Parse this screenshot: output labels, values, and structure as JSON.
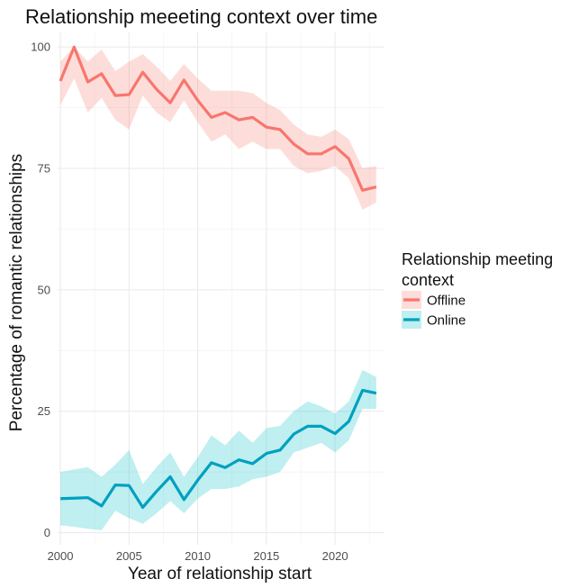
{
  "chart_data": {
    "type": "line",
    "title": "Relationship meeeting context over time",
    "xlabel": "Year of relationship start",
    "ylabel": "Percentage of romantic relationships",
    "x": [
      2000,
      2001,
      2002,
      2003,
      2004,
      2005,
      2006,
      2007,
      2008,
      2009,
      2010,
      2011,
      2012,
      2013,
      2014,
      2015,
      2016,
      2017,
      2018,
      2019,
      2020,
      2021,
      2022,
      2023
    ],
    "xlim": [
      1999.8,
      2023.6
    ],
    "ylim": [
      -2.5,
      103
    ],
    "x_ticks": [
      2000,
      2005,
      2010,
      2015,
      2020
    ],
    "y_ticks": [
      0,
      25,
      50,
      75,
      100
    ],
    "grid": true,
    "legend_position": "right",
    "legend_title": "Relationship meeting context",
    "series": [
      {
        "name": "Offline",
        "color": "#f8766d",
        "band_color": "#f8766d",
        "values": [
          93.0,
          100.0,
          92.8,
          94.5,
          90.0,
          90.2,
          94.8,
          91.3,
          88.5,
          93.2,
          89.0,
          85.5,
          86.5,
          85.0,
          85.5,
          83.5,
          83.0,
          80.0,
          78.0,
          78.0,
          79.5,
          77.0,
          70.5,
          71.2
        ],
        "lower": [
          88.0,
          93.5,
          86.5,
          89.5,
          85.0,
          83.0,
          90.0,
          86.5,
          84.5,
          89.0,
          84.5,
          80.5,
          82.0,
          79.0,
          80.5,
          79.0,
          79.0,
          75.5,
          74.0,
          74.5,
          75.5,
          73.0,
          66.5,
          68.0
        ],
        "upper": [
          97.0,
          100.0,
          97.0,
          99.5,
          95.0,
          97.0,
          98.5,
          96.0,
          93.0,
          96.5,
          93.5,
          91.0,
          91.0,
          91.0,
          90.5,
          88.5,
          87.0,
          84.0,
          82.0,
          81.5,
          83.0,
          81.0,
          75.0,
          75.5
        ]
      },
      {
        "name": "Online",
        "color": "#00a0c0",
        "band_color": "#00bfc4",
        "values": [
          7.0,
          7.1,
          7.2,
          5.5,
          9.8,
          9.7,
          5.2,
          8.5,
          11.5,
          6.8,
          10.8,
          14.4,
          13.4,
          15.0,
          14.2,
          16.3,
          17.0,
          20.3,
          21.9,
          21.9,
          20.4,
          22.9,
          29.3,
          28.7
        ],
        "lower": [
          1.5,
          1.2,
          0.8,
          0.5,
          4.5,
          3.0,
          1.8,
          4.0,
          6.5,
          4.0,
          7.0,
          9.0,
          9.0,
          9.5,
          11.0,
          11.5,
          12.5,
          16.5,
          17.5,
          18.5,
          16.5,
          19.0,
          25.5,
          25.5
        ],
        "upper": [
          12.5,
          13.0,
          13.5,
          11.5,
          14.0,
          17.0,
          10.0,
          13.5,
          16.5,
          11.5,
          15.5,
          20.0,
          18.0,
          21.0,
          18.5,
          21.5,
          22.0,
          25.0,
          27.0,
          26.0,
          24.5,
          27.0,
          33.5,
          32.0
        ]
      }
    ]
  }
}
